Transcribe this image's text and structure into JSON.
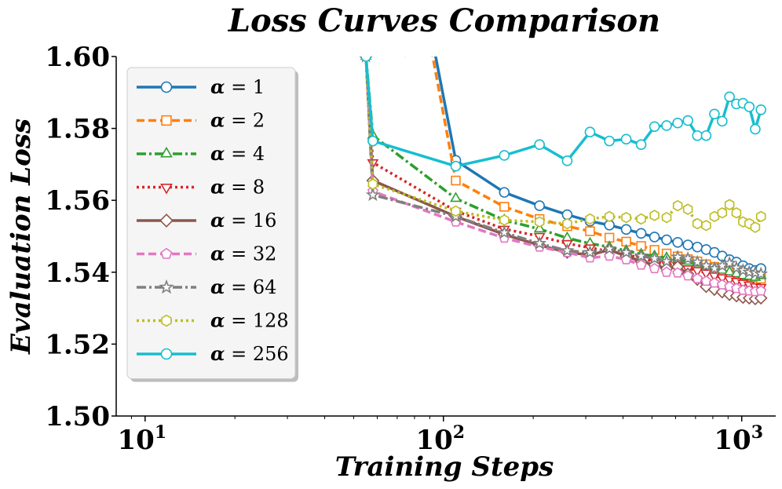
{
  "chart_data": {
    "type": "line",
    "title": "Loss Curves Comparison",
    "xlabel": "Training Steps",
    "ylabel": "Evaluation Loss",
    "xscale": "log",
    "xlim": [
      8,
      1300
    ],
    "ylim": [
      1.5,
      1.6
    ],
    "yticks": [
      "1.50",
      "1.52",
      "1.54",
      "1.56",
      "1.58",
      "1.60"
    ],
    "xticks": [
      {
        "value": 10,
        "base": "10",
        "exp": "1"
      },
      {
        "value": 100,
        "base": "10",
        "exp": "2"
      },
      {
        "value": 1000,
        "base": "10",
        "exp": "3"
      }
    ],
    "grid": false,
    "legend": "top-left",
    "legend_prefix": "α",
    "legend_eq": " = ",
    "series": [
      {
        "label": "1",
        "color": "#1f77b4",
        "dash": "solid",
        "marker": "circle",
        "x": [
          55,
          110,
          160,
          210,
          260,
          310,
          360,
          410,
          460,
          510,
          560,
          610,
          660,
          710,
          760,
          810,
          860,
          910,
          960,
          1010,
          1060,
          1110,
          1160
        ],
        "y": [
          1.7,
          1.5711,
          1.5622,
          1.5585,
          1.556,
          1.5542,
          1.5531,
          1.5519,
          1.5508,
          1.5498,
          1.549,
          1.5483,
          1.5476,
          1.547,
          1.5463,
          1.5455,
          1.5445,
          1.5435,
          1.5428,
          1.5418,
          1.541,
          1.5405,
          1.541
        ],
        "start": [
          75,
          1.6
        ]
      },
      {
        "label": "2",
        "color": "#ff7f0e",
        "dash": "dashed",
        "marker": "square",
        "x": [
          55,
          110,
          160,
          210,
          260,
          310,
          360,
          410,
          460,
          510,
          560,
          610,
          660,
          710,
          760,
          810,
          860,
          910,
          960,
          1010,
          1060,
          1110,
          1160
        ],
        "y": [
          1.7,
          1.5655,
          1.5582,
          1.5548,
          1.5528,
          1.5514,
          1.5496,
          1.5485,
          1.5473,
          1.5462,
          1.5452,
          1.5444,
          1.5436,
          1.543,
          1.5422,
          1.5415,
          1.541,
          1.5405,
          1.5398,
          1.5392,
          1.5388,
          1.5385,
          1.5382
        ],
        "start": [
          65,
          1.6
        ]
      },
      {
        "label": "4",
        "color": "#2ca02c",
        "dash": "dashdot",
        "marker": "triangle-up",
        "x": [
          55,
          58,
          110,
          160,
          210,
          260,
          310,
          360,
          410,
          460,
          510,
          560,
          610,
          660,
          710,
          760,
          810,
          860,
          910,
          960,
          1010,
          1060,
          1110,
          1160
        ],
        "y": [
          1.6,
          1.578,
          1.5605,
          1.5545,
          1.552,
          1.5495,
          1.548,
          1.547,
          1.546,
          1.545,
          1.5445,
          1.544,
          1.5435,
          1.543,
          1.5425,
          1.5415,
          1.541,
          1.5405,
          1.54,
          1.5395,
          1.539,
          1.5388,
          1.5385,
          1.539
        ]
      },
      {
        "label": "8",
        "color": "#d62728",
        "dash": "dotted",
        "marker": "triangle-down",
        "x": [
          55,
          58,
          110,
          160,
          210,
          260,
          310,
          360,
          410,
          460,
          510,
          560,
          610,
          660,
          710,
          760,
          810,
          860,
          910,
          960,
          1010,
          1060,
          1110,
          1160
        ],
        "y": [
          1.6,
          1.5705,
          1.557,
          1.552,
          1.55,
          1.548,
          1.5468,
          1.5458,
          1.545,
          1.5438,
          1.543,
          1.5422,
          1.5418,
          1.541,
          1.5405,
          1.5398,
          1.539,
          1.5385,
          1.538,
          1.5375,
          1.537,
          1.5365,
          1.536,
          1.5358
        ]
      },
      {
        "label": "16",
        "color": "#8c564b",
        "dash": "solid",
        "marker": "diamond",
        "x": [
          55,
          58,
          110,
          160,
          210,
          260,
          310,
          360,
          410,
          460,
          510,
          560,
          610,
          660,
          710,
          760,
          810,
          860,
          910,
          960,
          1010,
          1060,
          1110,
          1160
        ],
        "y": [
          1.6,
          1.5655,
          1.5555,
          1.5505,
          1.5475,
          1.5455,
          1.5448,
          1.5462,
          1.5445,
          1.543,
          1.542,
          1.541,
          1.5415,
          1.5395,
          1.538,
          1.536,
          1.5352,
          1.5345,
          1.5338,
          1.5334,
          1.533,
          1.5328,
          1.5326,
          1.5328
        ]
      },
      {
        "label": "32",
        "color": "#e377c2",
        "dash": "dashed",
        "marker": "pentagon",
        "x": [
          55,
          58,
          110,
          160,
          210,
          260,
          310,
          360,
          410,
          460,
          510,
          560,
          610,
          660,
          710,
          760,
          810,
          860,
          910,
          960,
          1010,
          1060,
          1110,
          1160
        ],
        "y": [
          1.6,
          1.5625,
          1.554,
          1.5495,
          1.547,
          1.5455,
          1.544,
          1.5445,
          1.5435,
          1.542,
          1.541,
          1.54,
          1.5398,
          1.539,
          1.5382,
          1.5375,
          1.537,
          1.5365,
          1.536,
          1.5355,
          1.535,
          1.5348,
          1.5346,
          1.5348
        ]
      },
      {
        "label": "64",
        "color": "#7f7f7f",
        "dash": "dashdot",
        "marker": "star",
        "x": [
          55,
          58,
          110,
          160,
          210,
          260,
          310,
          360,
          410,
          460,
          510,
          560,
          610,
          660,
          710,
          760,
          810,
          860,
          910,
          960,
          1010,
          1060,
          1110,
          1160
        ],
        "y": [
          1.6,
          1.5615,
          1.5555,
          1.551,
          1.548,
          1.546,
          1.5455,
          1.5465,
          1.5455,
          1.5445,
          1.5438,
          1.543,
          1.5442,
          1.5438,
          1.5428,
          1.5418,
          1.541,
          1.5418,
          1.5425,
          1.5412,
          1.5405,
          1.54,
          1.5398,
          1.5395
        ]
      },
      {
        "label": "128",
        "color": "#bcbd22",
        "dash": "dotted",
        "marker": "hexagon",
        "x": [
          55,
          58,
          110,
          160,
          210,
          260,
          310,
          360,
          410,
          460,
          510,
          560,
          610,
          660,
          710,
          760,
          810,
          860,
          910,
          960,
          1010,
          1060,
          1110,
          1160
        ],
        "y": [
          1.6,
          1.5645,
          1.557,
          1.5545,
          1.554,
          1.5535,
          1.5548,
          1.5555,
          1.5552,
          1.5548,
          1.5558,
          1.5552,
          1.5585,
          1.5575,
          1.5535,
          1.553,
          1.5555,
          1.5565,
          1.5588,
          1.5565,
          1.554,
          1.5535,
          1.5525,
          1.5555
        ]
      },
      {
        "label": "256",
        "color": "#17becf",
        "dash": "solid",
        "marker": "circle",
        "x": [
          55,
          58,
          110,
          160,
          210,
          260,
          310,
          360,
          410,
          460,
          510,
          560,
          610,
          660,
          710,
          760,
          810,
          860,
          910,
          960,
          1010,
          1060,
          1110,
          1160
        ],
        "y": [
          1.6,
          1.5765,
          1.5695,
          1.5725,
          1.5755,
          1.571,
          1.579,
          1.5765,
          1.577,
          1.5755,
          1.5805,
          1.5808,
          1.5815,
          1.5822,
          1.578,
          1.578,
          1.584,
          1.582,
          1.5888,
          1.5868,
          1.587,
          1.586,
          1.5798,
          1.5852
        ]
      }
    ]
  }
}
